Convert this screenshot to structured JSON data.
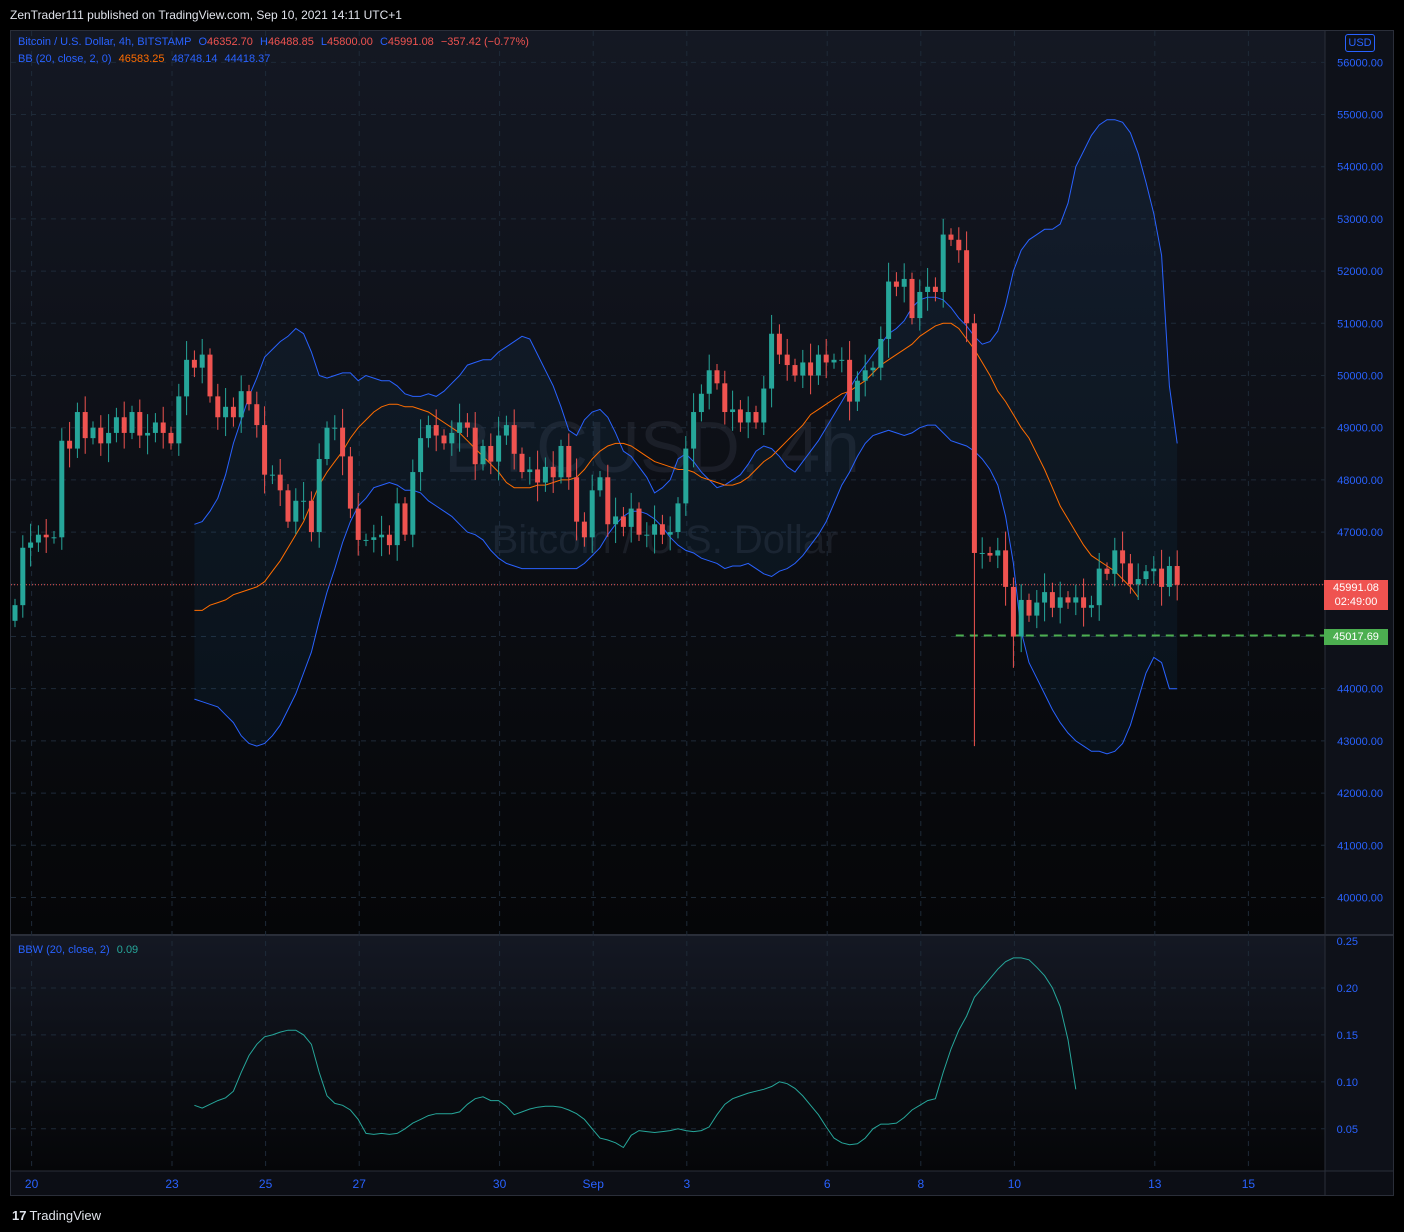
{
  "header": {
    "publisher_line": "ZenTrader111 published on TradingView.com, Sep 10, 2021 14:11 UTC+1"
  },
  "main_legend": {
    "symbol": "Bitcoin / U.S. Dollar, 4h, BITSTAMP",
    "o_label": "O",
    "o_value": "46352.70",
    "h_label": "H",
    "h_value": "46488.85",
    "l_label": "L",
    "l_value": "45800.00",
    "c_label": "C",
    "c_value": "45991.08",
    "change": "−357.42 (−0.77%)"
  },
  "bb_legend": {
    "label": "BB (20, close, 2, 0)",
    "basis": "46583.25",
    "upper": "48748.14",
    "lower": "44418.37"
  },
  "bbw_legend": {
    "label": "BBW (20, close, 2)",
    "value": "0.09"
  },
  "currency_button": "USD",
  "watermark": {
    "line1": "BTCUSD, 4h",
    "line2": "Bitcoin / U.S. Dollar"
  },
  "price_tags": {
    "last_price": "45991.08",
    "countdown": "02:49:00",
    "level_price": "45017.69"
  },
  "footer": {
    "brand": "TradingView"
  },
  "colors": {
    "up": "#26a69a",
    "down": "#ef5350",
    "bb_band": "#2962ff",
    "bb_basis": "#ff6d00",
    "bbw": "#26a69a",
    "level": "#4caf50"
  },
  "chart_data": [
    {
      "type": "candlestick",
      "title": "Bitcoin / U.S. Dollar, 4h, BITSTAMP",
      "ylim": [
        39300,
        56600
      ],
      "y_ticks": [
        "56000.00",
        "55000.00",
        "54000.00",
        "53000.00",
        "52000.00",
        "51000.00",
        "50000.00",
        "49000.00",
        "48000.00",
        "47000.00",
        "46000.00",
        "45000.00",
        "44000.00",
        "43000.00",
        "42000.00",
        "41000.00",
        "40000.00"
      ],
      "x_ticks": [
        {
          "label": "20",
          "bar": 2
        },
        {
          "label": "23",
          "bar": 20
        },
        {
          "label": "25",
          "bar": 32
        },
        {
          "label": "27",
          "bar": 44
        },
        {
          "label": "30",
          "bar": 62
        },
        {
          "label": "Sep",
          "bar": 74
        },
        {
          "label": "3",
          "bar": 86
        },
        {
          "label": "6",
          "bar": 104
        },
        {
          "label": "8",
          "bar": 116
        },
        {
          "label": "10",
          "bar": 128
        },
        {
          "label": "13",
          "bar": 146
        },
        {
          "label": "15",
          "bar": 158
        }
      ],
      "total_bars": 170,
      "closes": [
        45600,
        46700,
        46800,
        46950,
        46900,
        46900,
        48750,
        48600,
        49300,
        48800,
        49000,
        48700,
        48900,
        49200,
        48900,
        49300,
        48850,
        48900,
        49100,
        48900,
        48700,
        49600,
        50300,
        50150,
        50400,
        49600,
        49200,
        49400,
        49200,
        49700,
        49450,
        49050,
        48100,
        48100,
        47800,
        47200,
        47600,
        47600,
        47000,
        48400,
        49000,
        49000,
        48450,
        47450,
        46850,
        46850,
        46900,
        46950,
        46750,
        47550,
        46950,
        48150,
        48800,
        49050,
        48850,
        48700,
        48900,
        49100,
        49000,
        48300,
        48650,
        48350,
        48850,
        49050,
        48500,
        48150,
        48200,
        47950,
        48250,
        48050,
        48650,
        48050,
        47200,
        46900,
        47800,
        48050,
        47150,
        47300,
        47100,
        47450,
        46950,
        46950,
        47150,
        46950,
        47000,
        47550,
        48600,
        49300,
        49650,
        50100,
        49850,
        49300,
        49350,
        49100,
        49300,
        49100,
        49750,
        50800,
        50400,
        50200,
        50000,
        50250,
        50000,
        50400,
        50250,
        50300,
        50300,
        49500,
        49900,
        50100,
        50150,
        50700,
        51800,
        51700,
        51850,
        51100,
        51600,
        51700,
        51600,
        52700,
        52600,
        52400,
        51000,
        46600,
        46600,
        46550,
        46650,
        45950,
        45000,
        45700,
        45400,
        45650,
        45850,
        45550,
        45750,
        45650,
        45750,
        45550,
        45600,
        46300,
        46200,
        46650,
        46400,
        46000,
        46100,
        46250,
        46300,
        45950,
        46350,
        45991.08
      ],
      "bb_upper": [
        47150,
        47200,
        47400,
        47650,
        48100,
        48700,
        49150,
        49600,
        49950,
        50350,
        50500,
        50650,
        50750,
        50900,
        50800,
        50450,
        50000,
        49950,
        50000,
        50050,
        50050,
        49900,
        50000,
        49950,
        49900,
        49900,
        49800,
        49650,
        49600,
        49600,
        49650,
        49600,
        49700,
        49850,
        50000,
        50200,
        50250,
        50300,
        50300,
        50450,
        50550,
        50650,
        50750,
        50700,
        50400,
        50100,
        49800,
        49400,
        48950,
        48850,
        49150,
        49300,
        49350,
        49200,
        48900,
        48550,
        48450,
        48250,
        48050,
        47750,
        47850,
        48000,
        48400,
        48500,
        48350,
        48150,
        48000,
        47850,
        47900,
        48000,
        48100,
        48300,
        48550,
        48650,
        48600,
        48450,
        48250,
        48150,
        48350,
        48550,
        48750,
        49000,
        49250,
        49500,
        49750,
        50000,
        50200,
        50400,
        50600,
        50800,
        50900,
        51050,
        51300,
        51450,
        51500,
        51500,
        51450,
        51300,
        51100,
        50950,
        50750,
        50600,
        50650,
        50850,
        51350,
        52000,
        52400,
        52600,
        52700,
        52800,
        52800,
        52900,
        53300,
        54000,
        54300,
        54600,
        54800,
        54900,
        54900,
        54850,
        54650,
        54250,
        53700,
        53100,
        52300,
        49800,
        48700
      ],
      "bb_basis": [
        45500,
        45500,
        45600,
        45650,
        45700,
        45800,
        45850,
        45900,
        45950,
        46050,
        46250,
        46450,
        46700,
        46950,
        47200,
        47550,
        47900,
        48150,
        48350,
        48550,
        48800,
        49000,
        49150,
        49300,
        49400,
        49450,
        49450,
        49400,
        49400,
        49350,
        49300,
        49200,
        49100,
        49000,
        48900,
        48750,
        48600,
        48450,
        48300,
        48150,
        47950,
        47850,
        47850,
        47850,
        47900,
        47900,
        47950,
        48000,
        48000,
        48050,
        48200,
        48400,
        48550,
        48650,
        48700,
        48700,
        48650,
        48550,
        48450,
        48350,
        48300,
        48250,
        48200,
        48200,
        48150,
        48050,
        48000,
        47950,
        47900,
        47900,
        47950,
        48050,
        48200,
        48350,
        48450,
        48600,
        48750,
        48900,
        49050,
        49250,
        49350,
        49450,
        49550,
        49650,
        49700,
        49800,
        49900,
        50050,
        50200,
        50300,
        50400,
        50500,
        50600,
        50750,
        50850,
        50950,
        51000,
        51000,
        50900,
        50700,
        50500,
        50250,
        50000,
        49700,
        49500,
        49250,
        49000,
        48800,
        48500,
        48200,
        47850,
        47500,
        47250,
        47000,
        46750,
        46550,
        46450,
        46350,
        46250,
        46100,
        45950,
        45750
      ],
      "bb_lower": [
        43800,
        43750,
        43700,
        43650,
        43500,
        43350,
        43100,
        42950,
        42900,
        42950,
        43100,
        43300,
        43600,
        43900,
        44300,
        44700,
        45300,
        45850,
        46300,
        46800,
        47200,
        47500,
        47650,
        47850,
        47900,
        47950,
        47900,
        47800,
        47800,
        47750,
        47600,
        47500,
        47400,
        47300,
        47150,
        47000,
        46950,
        46850,
        46650,
        46500,
        46400,
        46350,
        46300,
        46300,
        46300,
        46300,
        46300,
        46300,
        46300,
        46300,
        46400,
        46550,
        46700,
        46950,
        47150,
        47300,
        47400,
        47400,
        47350,
        47250,
        47100,
        46900,
        46750,
        46650,
        46600,
        46500,
        46450,
        46400,
        46300,
        46350,
        46350,
        46400,
        46300,
        46200,
        46150,
        46250,
        46300,
        46400,
        46550,
        46750,
        46950,
        47200,
        47550,
        47900,
        48150,
        48450,
        48700,
        48850,
        48900,
        48950,
        48900,
        48850,
        48900,
        49000,
        49050,
        49050,
        48900,
        48750,
        48700,
        48650,
        48550,
        48400,
        48200,
        47900,
        47300,
        46400,
        45100,
        44500,
        44200,
        43900,
        43600,
        43350,
        43150,
        43000,
        42900,
        42800,
        42800,
        42750,
        42800,
        42950,
        43300,
        43800,
        44300,
        44600,
        44500,
        44000,
        44000
      ],
      "horizontal_levels": [
        {
          "price": 45991.08,
          "style": "dotted",
          "color": "#ef5350"
        },
        {
          "price": 45017.69,
          "style": "dashed",
          "color": "#4caf50"
        }
      ]
    },
    {
      "type": "line",
      "title": "BBW (20, close, 2)",
      "ylim": [
        0.005,
        0.25
      ],
      "y_ticks": [
        "0.25",
        "0.20",
        "0.15",
        "0.10",
        "0.05"
      ],
      "values": [
        0.075,
        0.072,
        0.076,
        0.08,
        0.083,
        0.09,
        0.11,
        0.128,
        0.14,
        0.148,
        0.15,
        0.153,
        0.155,
        0.155,
        0.15,
        0.14,
        0.11,
        0.085,
        0.077,
        0.075,
        0.07,
        0.06,
        0.045,
        0.044,
        0.045,
        0.044,
        0.045,
        0.05,
        0.056,
        0.06,
        0.064,
        0.066,
        0.066,
        0.066,
        0.068,
        0.076,
        0.082,
        0.084,
        0.08,
        0.08,
        0.074,
        0.065,
        0.068,
        0.071,
        0.073,
        0.074,
        0.074,
        0.073,
        0.07,
        0.066,
        0.06,
        0.05,
        0.04,
        0.038,
        0.035,
        0.03,
        0.043,
        0.048,
        0.047,
        0.046,
        0.047,
        0.048,
        0.05,
        0.048,
        0.047,
        0.048,
        0.052,
        0.065,
        0.076,
        0.082,
        0.085,
        0.088,
        0.09,
        0.092,
        0.095,
        0.1,
        0.098,
        0.093,
        0.085,
        0.075,
        0.065,
        0.052,
        0.04,
        0.035,
        0.033,
        0.034,
        0.04,
        0.05,
        0.055,
        0.055,
        0.056,
        0.062,
        0.07,
        0.075,
        0.08,
        0.082,
        0.11,
        0.135,
        0.155,
        0.17,
        0.19,
        0.2,
        0.21,
        0.22,
        0.228,
        0.232,
        0.232,
        0.23,
        0.222,
        0.213,
        0.2,
        0.18,
        0.145,
        0.092
      ]
    }
  ]
}
